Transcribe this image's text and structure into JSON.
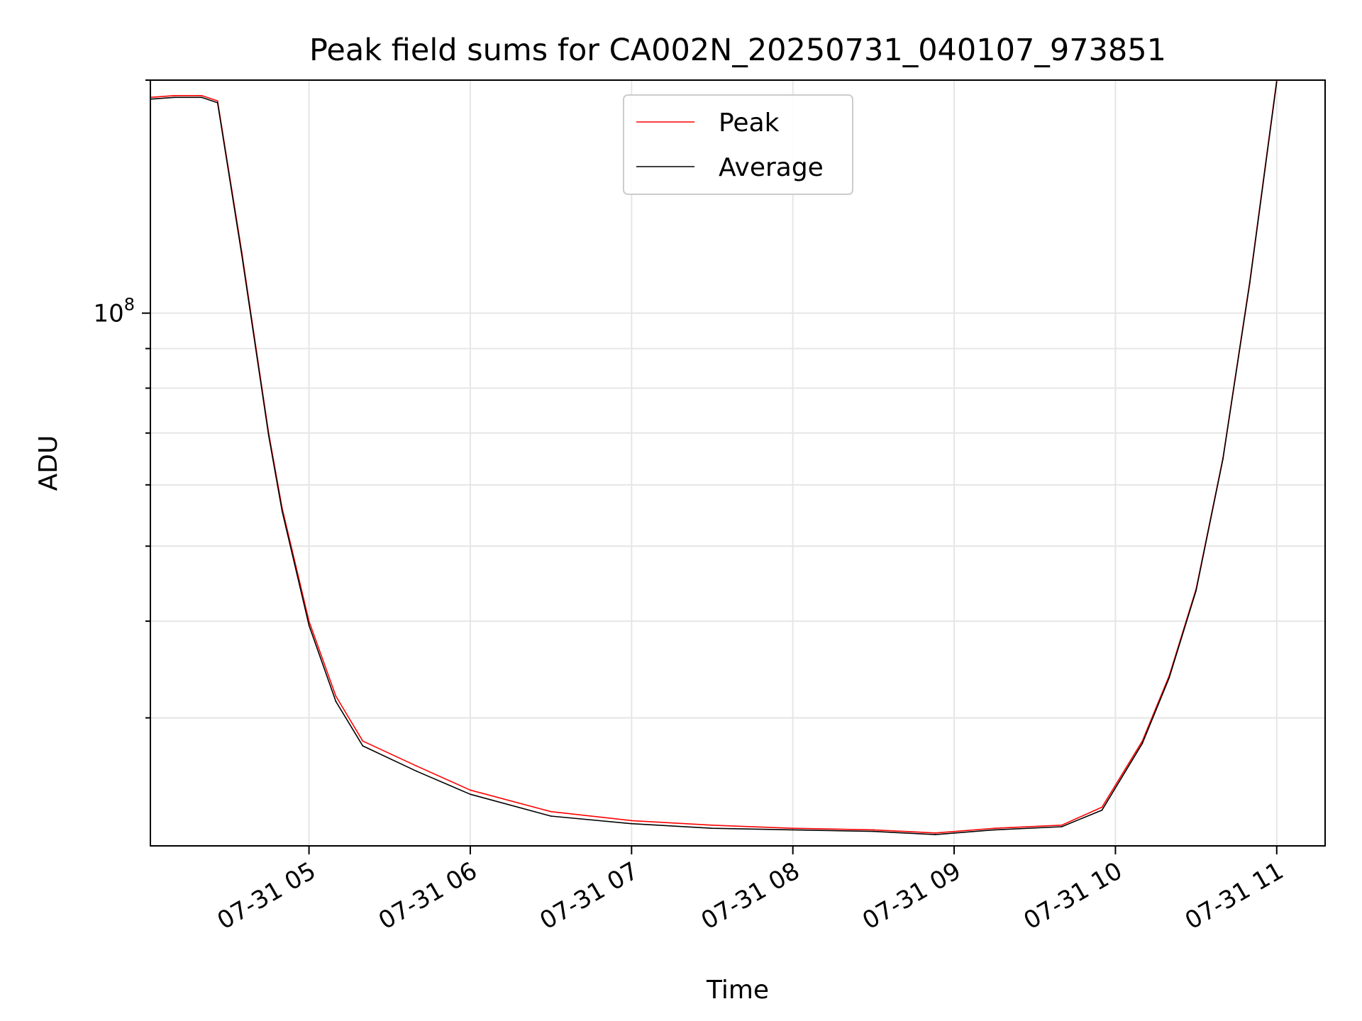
{
  "chart_data": {
    "type": "line",
    "title": "Peak field sums for CA002N_20250731_040107_973851",
    "xlabel": "Time",
    "ylabel": "ADU",
    "yscale": "log",
    "grid": true,
    "legend_position": "top-center",
    "x_range": [
      "2025-07-31 04:01",
      "2025-07-31 11:18"
    ],
    "ylim": [
      20500000,
      200000000
    ],
    "x_ticks": [
      "07-31 05",
      "07-31 06",
      "07-31 07",
      "07-31 08",
      "07-31 09",
      "07-31 10",
      "07-31 11"
    ],
    "y_tick_major": {
      "base": "10",
      "exponent": "8",
      "value": 100000000
    },
    "series": [
      {
        "name": "Peak",
        "color": "#ff0000",
        "x": [
          "2025-07-31 04:01",
          "2025-07-31 04:10",
          "2025-07-31 04:20",
          "2025-07-31 04:26",
          "2025-07-31 04:35",
          "2025-07-31 04:45",
          "2025-07-31 04:50",
          "2025-07-31 05:00",
          "2025-07-31 05:10",
          "2025-07-31 05:20",
          "2025-07-31 05:40",
          "2025-07-31 06:00",
          "2025-07-31 06:30",
          "2025-07-31 07:00",
          "2025-07-31 07:30",
          "2025-07-31 08:00",
          "2025-07-31 08:30",
          "2025-07-31 08:53",
          "2025-07-31 09:15",
          "2025-07-31 09:40",
          "2025-07-31 09:55",
          "2025-07-31 10:10",
          "2025-07-31 10:20",
          "2025-07-31 10:30",
          "2025-07-31 10:40",
          "2025-07-31 10:50",
          "2025-07-31 11:00"
        ],
        "y": [
          190000000,
          191000000,
          191000000,
          188000000,
          120000000,
          70000000,
          56000000,
          40000000,
          32000000,
          28000000,
          26000000,
          24200000,
          22700000,
          22100000,
          21800000,
          21600000,
          21500000,
          21300000,
          21600000,
          21800000,
          23000000,
          28000000,
          34000000,
          44000000,
          65000000,
          110000000,
          200000000
        ]
      },
      {
        "name": "Average",
        "color": "#000000",
        "x": [
          "2025-07-31 04:01",
          "2025-07-31 04:10",
          "2025-07-31 04:20",
          "2025-07-31 04:26",
          "2025-07-31 04:35",
          "2025-07-31 04:45",
          "2025-07-31 04:50",
          "2025-07-31 05:00",
          "2025-07-31 05:10",
          "2025-07-31 05:20",
          "2025-07-31 05:40",
          "2025-07-31 06:00",
          "2025-07-31 06:30",
          "2025-07-31 07:00",
          "2025-07-31 07:30",
          "2025-07-31 08:00",
          "2025-07-31 08:30",
          "2025-07-31 08:53",
          "2025-07-31 09:15",
          "2025-07-31 09:40",
          "2025-07-31 09:55",
          "2025-07-31 10:10",
          "2025-07-31 10:20",
          "2025-07-31 10:30",
          "2025-07-31 10:40",
          "2025-07-31 10:50",
          "2025-07-31 11:00"
        ],
        "y": [
          189000000,
          190000000,
          190000000,
          187000000,
          119000000,
          69500000,
          55500000,
          39500000,
          31500000,
          27600000,
          25600000,
          23900000,
          22400000,
          21900000,
          21600000,
          21500000,
          21400000,
          21200000,
          21500000,
          21700000,
          22800000,
          27800000,
          33800000,
          43800000,
          64800000,
          109500000,
          199000000
        ]
      }
    ]
  }
}
